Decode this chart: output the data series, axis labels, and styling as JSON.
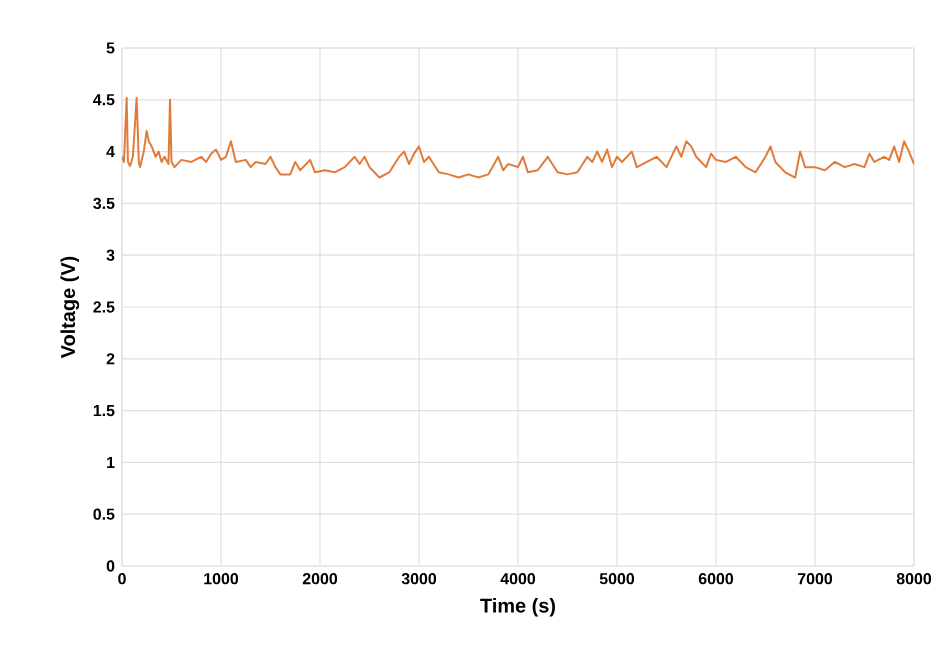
{
  "chart_data": {
    "type": "line",
    "xlabel": "Time (s)",
    "ylabel": "Voltage (V)",
    "xlim": [
      0,
      8000
    ],
    "xticks": [
      0,
      1000,
      2000,
      3000,
      4000,
      5000,
      6000,
      7000,
      8000
    ],
    "ylim": [
      0,
      5
    ],
    "yticks": [
      0,
      0.5,
      1,
      1.5,
      2,
      2.5,
      3,
      3.5,
      4,
      4.5,
      5
    ],
    "grid": true,
    "marker": "none",
    "line_style": "solid",
    "series": [
      {
        "color": "#e07b39",
        "x": [
          0,
          20,
          47,
          60,
          81,
          110,
          148,
          170,
          182,
          220,
          249,
          270,
          300,
          340,
          370,
          400,
          430,
          470,
          485,
          500,
          530,
          600,
          700,
          800,
          850,
          900,
          950,
          1000,
          1050,
          1100,
          1150,
          1250,
          1300,
          1350,
          1450,
          1500,
          1550,
          1600,
          1700,
          1750,
          1800,
          1900,
          1950,
          2050,
          2150,
          2250,
          2350,
          2400,
          2450,
          2500,
          2600,
          2700,
          2800,
          2850,
          2900,
          2950,
          3000,
          3050,
          3100,
          3200,
          3300,
          3400,
          3500,
          3600,
          3700,
          3800,
          3850,
          3900,
          4000,
          4050,
          4100,
          4200,
          4300,
          4400,
          4500,
          4600,
          4700,
          4750,
          4800,
          4850,
          4900,
          4950,
          5000,
          5050,
          5150,
          5200,
          5300,
          5400,
          5500,
          5600,
          5650,
          5700,
          5750,
          5800,
          5900,
          5950,
          6000,
          6100,
          6200,
          6300,
          6400,
          6500,
          6550,
          6600,
          6700,
          6800,
          6850,
          6900,
          7000,
          7100,
          7200,
          7300,
          7400,
          7500,
          7550,
          7600,
          7700,
          7750,
          7800,
          7850,
          7900,
          7950,
          8000
        ],
        "values": [
          3.95,
          3.9,
          4.52,
          3.9,
          3.86,
          3.95,
          4.52,
          3.9,
          3.85,
          4.0,
          4.2,
          4.1,
          4.05,
          3.95,
          4.0,
          3.9,
          3.95,
          3.88,
          4.5,
          3.9,
          3.85,
          3.92,
          3.9,
          3.95,
          3.9,
          3.98,
          4.02,
          3.92,
          3.95,
          4.1,
          3.9,
          3.92,
          3.85,
          3.9,
          3.88,
          3.95,
          3.85,
          3.78,
          3.78,
          3.9,
          3.82,
          3.92,
          3.8,
          3.82,
          3.8,
          3.85,
          3.95,
          3.88,
          3.95,
          3.85,
          3.75,
          3.8,
          3.95,
          4.0,
          3.88,
          3.98,
          4.05,
          3.9,
          3.95,
          3.8,
          3.78,
          3.75,
          3.78,
          3.75,
          3.78,
          3.95,
          3.82,
          3.88,
          3.85,
          3.95,
          3.8,
          3.82,
          3.95,
          3.8,
          3.78,
          3.8,
          3.95,
          3.9,
          4.0,
          3.9,
          4.02,
          3.85,
          3.95,
          3.9,
          4.0,
          3.85,
          3.9,
          3.95,
          3.85,
          4.05,
          3.95,
          4.1,
          4.05,
          3.95,
          3.85,
          3.98,
          3.92,
          3.9,
          3.95,
          3.85,
          3.8,
          3.95,
          4.05,
          3.9,
          3.8,
          3.75,
          4.0,
          3.85,
          3.85,
          3.82,
          3.9,
          3.85,
          3.88,
          3.85,
          3.98,
          3.9,
          3.95,
          3.92,
          4.05,
          3.9,
          4.1,
          4.0,
          3.88
        ]
      }
    ]
  }
}
